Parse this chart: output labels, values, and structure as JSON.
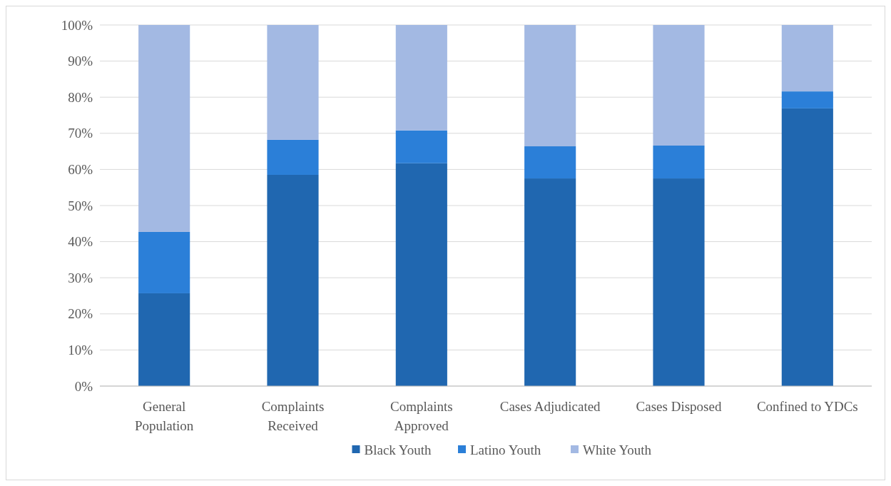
{
  "chart_data": {
    "type": "bar",
    "stacked": true,
    "categories": [
      "General Population",
      "Complaints Received",
      "Complaints Approved",
      "Cases Adjudicated",
      "Cases Disposed",
      "Confined to YDCs"
    ],
    "series": [
      {
        "name": "Black Youth",
        "color": "#2067b0",
        "values": [
          25.7,
          58.5,
          61.7,
          57.5,
          57.5,
          76.9
        ]
      },
      {
        "name": "Latino Youth",
        "color": "#2b7fd8",
        "values": [
          17.0,
          9.7,
          9.1,
          8.9,
          9.1,
          4.7
        ]
      },
      {
        "name": "White Youth",
        "color": "#a3b9e3",
        "values": [
          57.3,
          31.8,
          29.2,
          33.6,
          33.4,
          18.4
        ]
      }
    ],
    "ylim": [
      0,
      100
    ],
    "yticks": [
      {
        "value": 0,
        "label": "0%"
      },
      {
        "value": 10,
        "label": "10%"
      },
      {
        "value": 20,
        "label": "20%"
      },
      {
        "value": 30,
        "label": "30%"
      },
      {
        "value": 40,
        "label": "40%"
      },
      {
        "value": 50,
        "label": "50%"
      },
      {
        "value": 60,
        "label": "60%"
      },
      {
        "value": 70,
        "label": "70%"
      },
      {
        "value": 80,
        "label": "80%"
      },
      {
        "value": 90,
        "label": "90%"
      },
      {
        "value": 100,
        "label": "100%"
      }
    ],
    "grid": "y",
    "legend": "bottom"
  }
}
